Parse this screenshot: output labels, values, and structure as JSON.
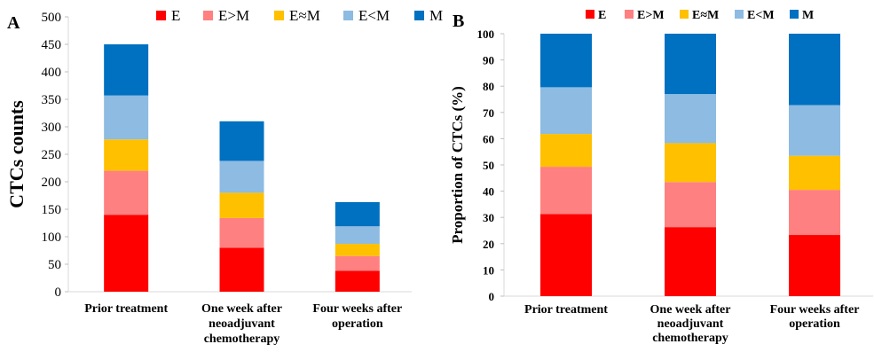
{
  "chart_data": [
    {
      "type": "bar",
      "stacked": true,
      "panel": "A",
      "categories": [
        [
          "Prior treatment"
        ],
        [
          "One week after",
          "neoadjuvant",
          "chemotherapy"
        ],
        [
          "Four weeks after",
          "operation"
        ]
      ],
      "ylabel": "CTCs counts",
      "ylim": [
        0,
        500
      ],
      "yticks": [
        0,
        50,
        100,
        150,
        200,
        250,
        300,
        350,
        400,
        450,
        500
      ],
      "legend_position": "top",
      "series": [
        {
          "name": "E",
          "color": "#ff0000",
          "values": [
            140,
            80,
            38
          ]
        },
        {
          "name": "E>M",
          "color": "#ff8080",
          "values": [
            80,
            54,
            27
          ]
        },
        {
          "name": "E≈M",
          "color": "#ffc000",
          "values": [
            57,
            46,
            22
          ]
        },
        {
          "name": "E<M",
          "color": "#8dbbe2",
          "values": [
            80,
            58,
            32
          ]
        },
        {
          "name": "M",
          "color": "#0070c0",
          "values": [
            93,
            72,
            44
          ]
        }
      ]
    },
    {
      "type": "bar",
      "stacked": true,
      "panel": "B",
      "categories": [
        [
          "Prior treatment"
        ],
        [
          "One week after",
          "neoadjuvant",
          "chemotherapy"
        ],
        [
          "Four weeks after",
          "operation"
        ]
      ],
      "ylabel": "Proportion of CTCs (%)",
      "ylim": [
        0,
        100
      ],
      "yticks": [
        0,
        10,
        20,
        30,
        40,
        50,
        60,
        70,
        80,
        90,
        100
      ],
      "legend_position": "top",
      "series": [
        {
          "name": "E",
          "color": "#ff0000",
          "values": [
            31.3,
            26.3,
            23.3
          ]
        },
        {
          "name": "E>M",
          "color": "#ff8080",
          "values": [
            18.0,
            17.2,
            17.2
          ]
        },
        {
          "name": "E≈M",
          "color": "#ffc000",
          "values": [
            12.5,
            14.8,
            13.0
          ]
        },
        {
          "name": "E<M",
          "color": "#8dbbe2",
          "values": [
            17.8,
            18.7,
            19.3
          ]
        },
        {
          "name": "M",
          "color": "#0070c0",
          "values": [
            20.4,
            23.0,
            27.2
          ]
        }
      ]
    }
  ]
}
